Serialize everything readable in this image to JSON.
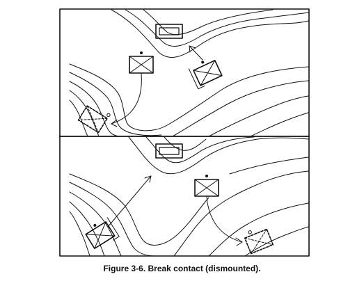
{
  "figure": {
    "caption": "Figure 3-6.  Break contact (dismounted).",
    "panels": [
      {
        "name": "upper-panel"
      },
      {
        "name": "lower-panel"
      }
    ]
  },
  "colors": {
    "ink": "#111111",
    "paper": "#ffffff"
  }
}
